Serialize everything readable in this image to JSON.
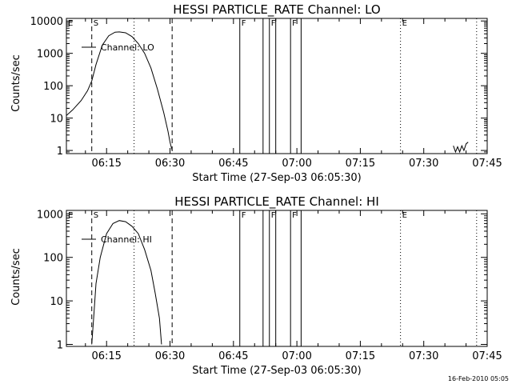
{
  "footer_timestamp": "16-Feb-2010 05:05",
  "chart_data": [
    {
      "type": "line",
      "title": "HESSI PARTICLE_RATE Channel: LO",
      "xlabel": "Start Time (27-Sep-03 06:05:30)",
      "ylabel": "Counts/sec",
      "y_scale": "log",
      "xlim": [
        "06:05:30",
        "07:45:00"
      ],
      "ylim": [
        0.8,
        12000
      ],
      "x_ticks": [
        "06:15",
        "06:30",
        "06:45",
        "07:00",
        "07:15",
        "07:30",
        "07:45"
      ],
      "y_ticks": [
        "1",
        "10",
        "100",
        "1000",
        "10000"
      ],
      "legend": {
        "label": "Channel: LO",
        "position": "top-left"
      },
      "markers": [
        {
          "label": "E",
          "time": "06:05:30",
          "style": "dotted"
        },
        {
          "label": "S",
          "time": "06:11:30",
          "style": "dashed"
        },
        {
          "label": "",
          "time": "06:21:30",
          "style": "dotted"
        },
        {
          "label": "",
          "time": "06:30:30",
          "style": "dashed"
        },
        {
          "label": "F",
          "time": "06:46:30",
          "style": "solid"
        },
        {
          "label": "",
          "time": "06:52:00",
          "style": "solid"
        },
        {
          "label": "F",
          "time": "06:53:30",
          "style": "solid"
        },
        {
          "label": "",
          "time": "06:55:00",
          "style": "solid"
        },
        {
          "label": "F",
          "time": "06:58:30",
          "style": "solid"
        },
        {
          "label": "",
          "time": "07:01:00",
          "style": "solid"
        },
        {
          "label": "E",
          "time": "07:24:30",
          "style": "dotted"
        },
        {
          "label": "",
          "time": "07:42:30",
          "style": "dotted"
        }
      ],
      "series": [
        {
          "values": [
            [
              "06:05:30",
              12
            ],
            [
              "06:07:00",
              18
            ],
            [
              "06:09:00",
              35
            ],
            [
              "06:10:30",
              70
            ],
            [
              "06:11:30",
              140
            ],
            [
              "06:12:30",
              450
            ],
            [
              "06:14:00",
              1800
            ],
            [
              "06:15:30",
              3500
            ],
            [
              "06:17:00",
              4500
            ],
            [
              "06:18:00",
              4600
            ],
            [
              "06:19:30",
              4300
            ],
            [
              "06:21:00",
              3300
            ],
            [
              "06:22:30",
              2000
            ],
            [
              "06:24:00",
              1000
            ],
            [
              "06:25:30",
              350
            ],
            [
              "06:27:00",
              80
            ],
            [
              "06:28:30",
              15
            ],
            [
              "06:29:30",
              4
            ],
            [
              "06:30:00",
              1.8
            ],
            [
              "06:30:30",
              1
            ]
          ]
        },
        {
          "values": [
            [
              "07:37:00",
              1.4
            ],
            [
              "07:37:30",
              0.9
            ],
            [
              "07:38:00",
              1.3
            ],
            [
              "07:38:30",
              0.9
            ],
            [
              "07:39:00",
              1.4
            ],
            [
              "07:39:30",
              1.0
            ],
            [
              "07:40:00",
              1.6
            ],
            [
              "07:40:30",
              1.8
            ]
          ]
        }
      ]
    },
    {
      "type": "line",
      "title": "HESSI PARTICLE_RATE Channel: HI",
      "xlabel": "Start Time (27-Sep-03 06:05:30)",
      "ylabel": "Counts/sec",
      "y_scale": "log",
      "xlim": [
        "06:05:30",
        "07:45:00"
      ],
      "ylim": [
        0.9,
        1200
      ],
      "x_ticks": [
        "06:15",
        "06:30",
        "06:45",
        "07:00",
        "07:15",
        "07:30",
        "07:45"
      ],
      "y_ticks": [
        "1",
        "10",
        "100",
        "1000"
      ],
      "legend": {
        "label": "Channel: HI",
        "position": "top-left"
      },
      "markers": [
        {
          "label": "E",
          "time": "06:05:30",
          "style": "dotted"
        },
        {
          "label": "S",
          "time": "06:11:30",
          "style": "dashed"
        },
        {
          "label": "",
          "time": "06:21:30",
          "style": "dotted"
        },
        {
          "label": "",
          "time": "06:30:30",
          "style": "dashed"
        },
        {
          "label": "F",
          "time": "06:46:30",
          "style": "solid"
        },
        {
          "label": "",
          "time": "06:52:00",
          "style": "solid"
        },
        {
          "label": "F",
          "time": "06:53:30",
          "style": "solid"
        },
        {
          "label": "",
          "time": "06:55:00",
          "style": "solid"
        },
        {
          "label": "F",
          "time": "06:58:30",
          "style": "solid"
        },
        {
          "label": "",
          "time": "07:01:00",
          "style": "solid"
        },
        {
          "label": "E",
          "time": "07:24:30",
          "style": "dotted"
        },
        {
          "label": "",
          "time": "07:42:30",
          "style": "dotted"
        }
      ],
      "series": [
        {
          "values": [
            [
              "06:11:30",
              1
            ],
            [
              "06:12:00",
              5
            ],
            [
              "06:12:30",
              25
            ],
            [
              "06:13:30",
              100
            ],
            [
              "06:15:00",
              350
            ],
            [
              "06:16:30",
              600
            ],
            [
              "06:18:00",
              700
            ],
            [
              "06:19:30",
              660
            ],
            [
              "06:21:00",
              520
            ],
            [
              "06:22:30",
              350
            ],
            [
              "06:24:00",
              150
            ],
            [
              "06:25:30",
              50
            ],
            [
              "06:26:30",
              15
            ],
            [
              "06:27:30",
              4
            ],
            [
              "06:28:00",
              1
            ]
          ]
        }
      ]
    }
  ]
}
